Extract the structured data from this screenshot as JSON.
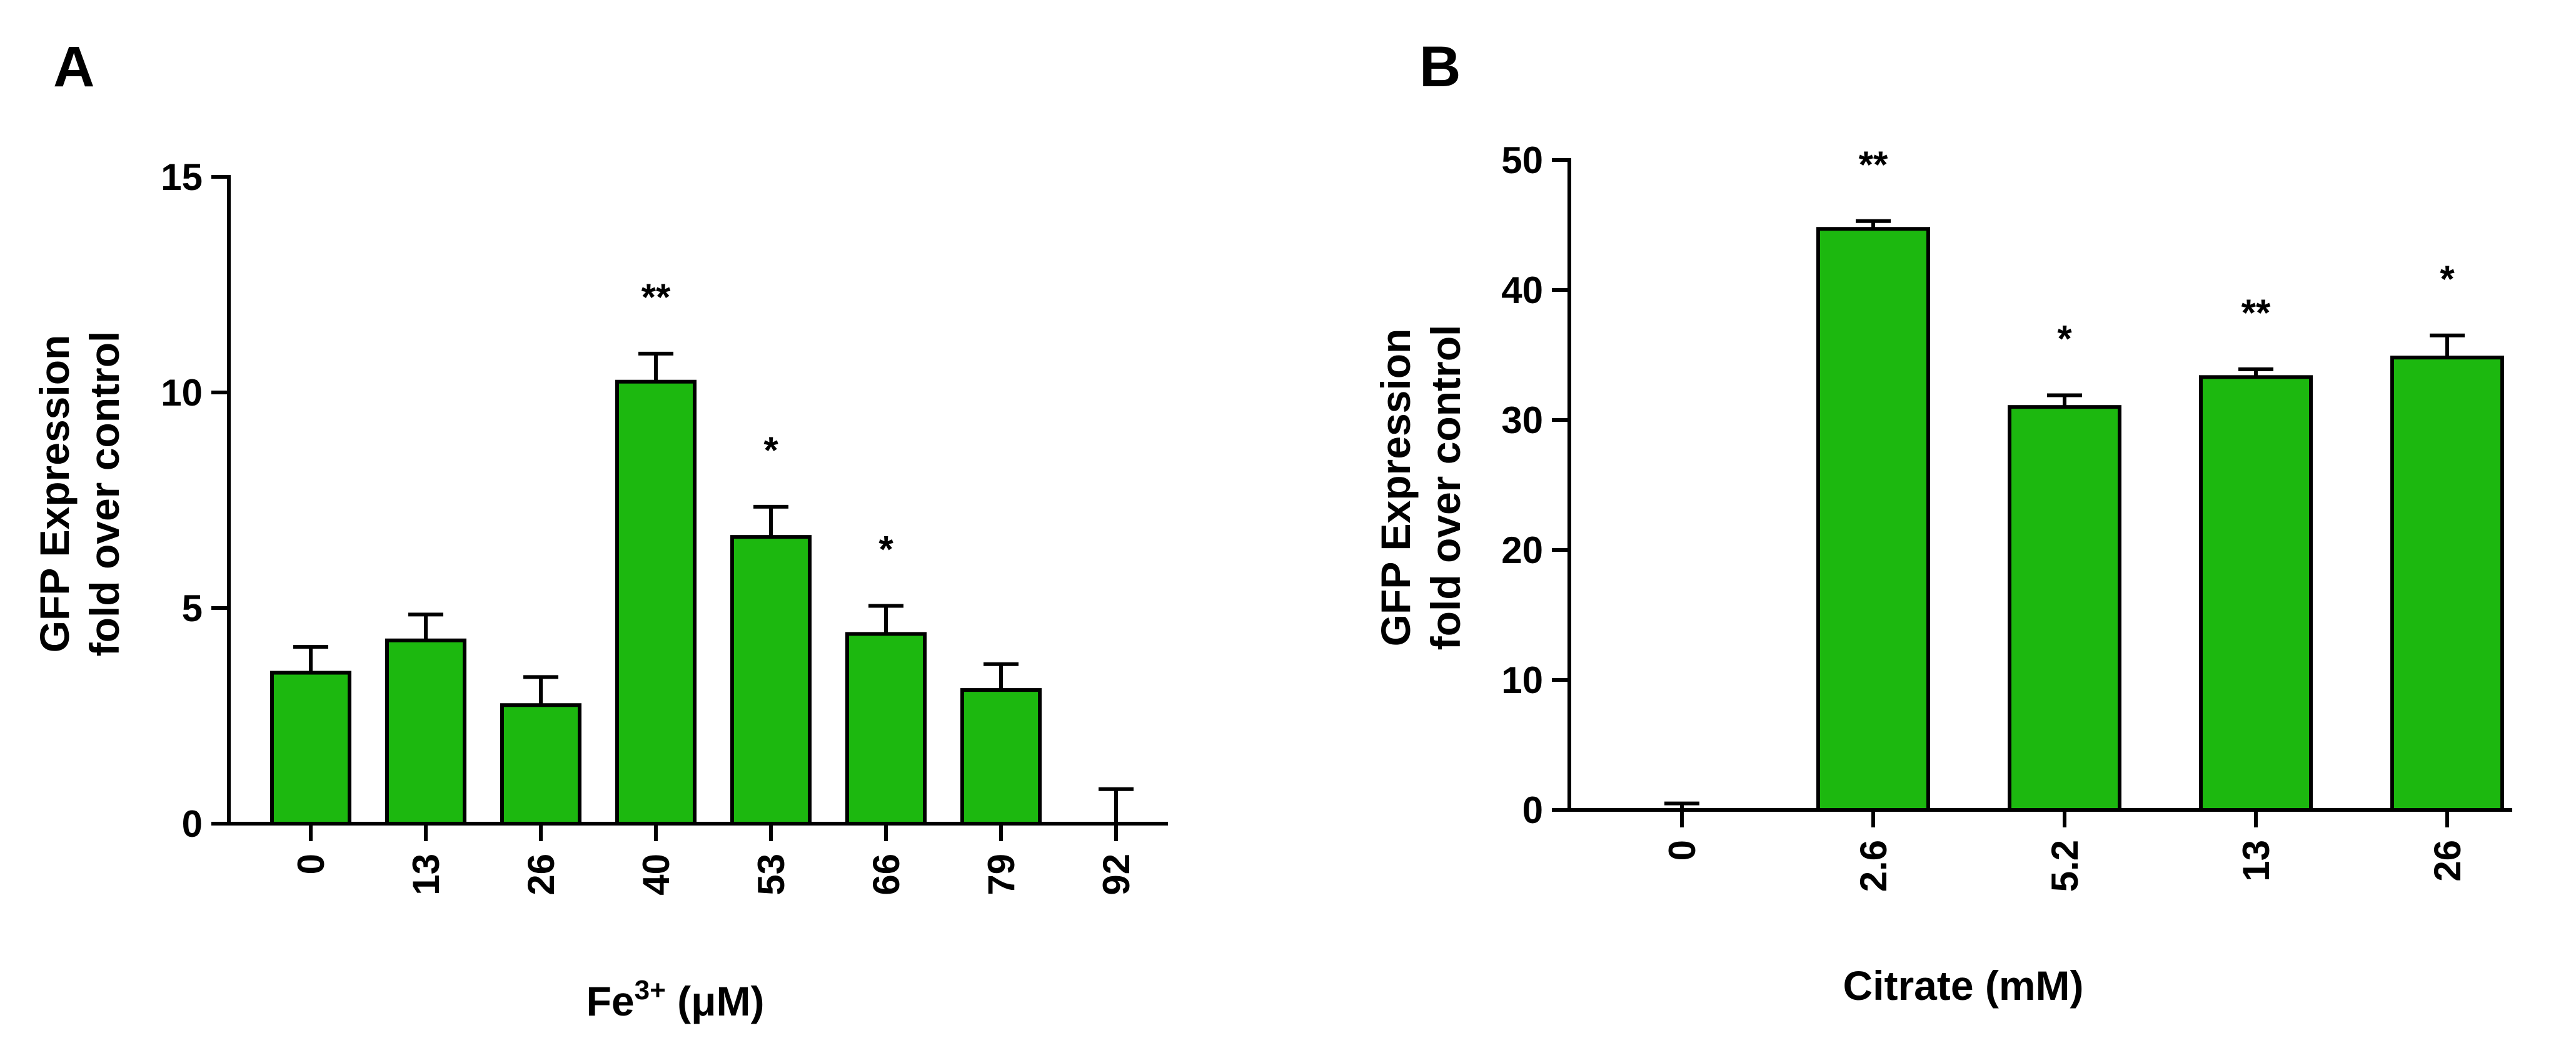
{
  "chart_data": [
    {
      "type": "bar",
      "panel": "A",
      "categories": [
        "0",
        "13",
        "26",
        "40",
        "53",
        "66",
        "79",
        "92"
      ],
      "values": [
        3.5,
        4.25,
        2.75,
        10.25,
        6.65,
        4.4,
        3.1,
        0
      ],
      "errors": [
        0.6,
        0.6,
        0.65,
        0.65,
        0.7,
        0.65,
        0.6,
        0.8
      ],
      "significance": [
        "",
        "",
        "",
        "**",
        "*",
        "*",
        "",
        ""
      ],
      "ylabel_line1": "GFP Expression",
      "ylabel_line2": "fold over control",
      "xlabel_main": "Fe",
      "xlabel_sup": "3+",
      "xlabel_unit": "(μM)",
      "ylim": [
        0,
        15
      ],
      "yticks": [
        "0",
        "5",
        "10",
        "15"
      ],
      "bar_color": "#1CB80F"
    },
    {
      "type": "bar",
      "panel": "B",
      "categories": [
        "0",
        "2.6",
        "5.2",
        "13",
        "26"
      ],
      "values": [
        0,
        44.7,
        31.0,
        33.3,
        34.8
      ],
      "errors": [
        0.5,
        0.6,
        0.9,
        0.6,
        1.7
      ],
      "significance": [
        "",
        "**",
        "*",
        "**",
        "*"
      ],
      "ylabel_line1": "GFP Expression",
      "ylabel_line2": "fold over control",
      "xlabel": "Citrate (mM)",
      "ylim": [
        0,
        50
      ],
      "yticks": [
        "0",
        "10",
        "20",
        "30",
        "40",
        "50"
      ],
      "bar_color": "#1CB80F"
    }
  ]
}
